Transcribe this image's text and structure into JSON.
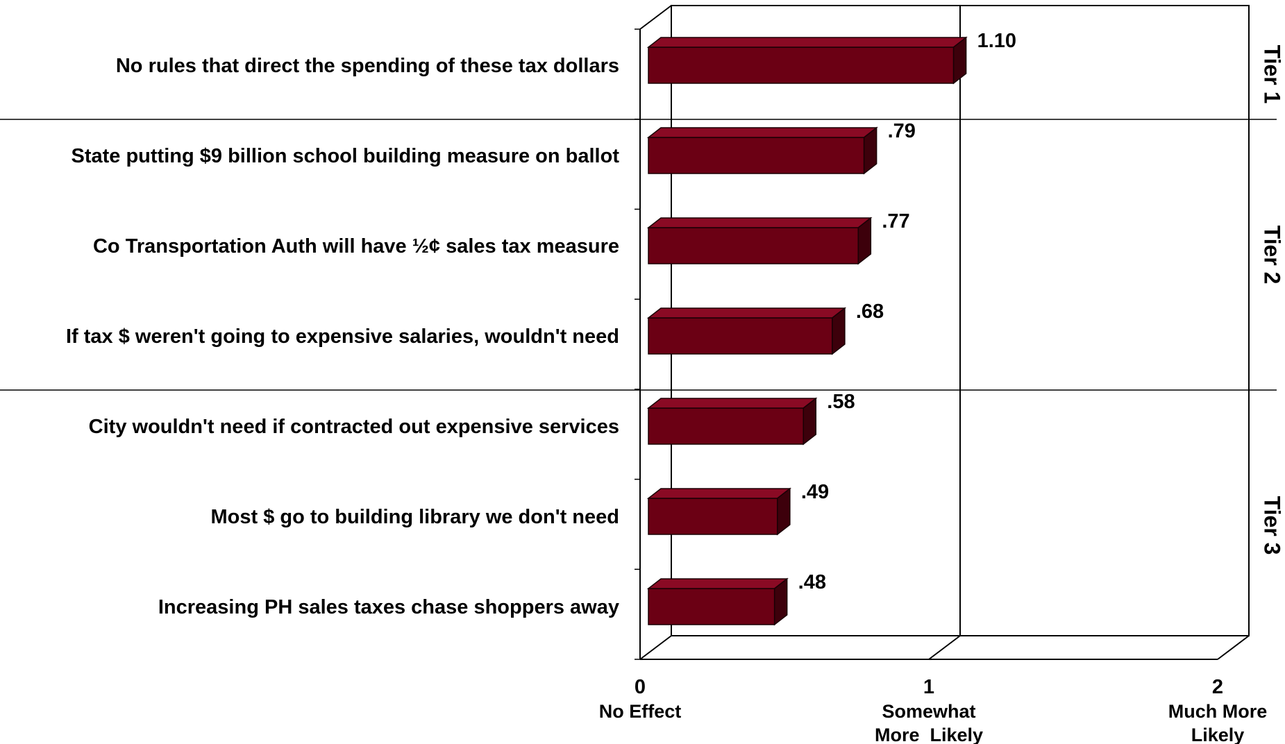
{
  "chart_data": {
    "type": "bar",
    "orientation": "horizontal",
    "categories": [
      "No rules that direct the spending of these tax dollars",
      "State putting $9 billion school building measure on ballot",
      "Co Transportation Auth will have ½¢ sales tax measure",
      "If tax $ weren't going to expensive salaries, wouldn't need",
      "City wouldn't need if contracted out expensive services",
      "Most $ go to building library we don't need",
      "Increasing PH sales taxes chase shoppers away"
    ],
    "values": [
      1.1,
      0.79,
      0.77,
      0.68,
      0.58,
      0.49,
      0.48
    ],
    "value_labels": [
      "1.10",
      ".79",
      ".77",
      ".68",
      ".58",
      ".49",
      ".48"
    ],
    "xlim": [
      0,
      2
    ],
    "x_ticks": [
      {
        "value": 0,
        "label": "0",
        "caption": [
          "No Effect"
        ]
      },
      {
        "value": 1,
        "label": "1",
        "caption": [
          "Somewhat",
          "More  Likely"
        ]
      },
      {
        "value": 2,
        "label": "2",
        "caption": [
          "Much More",
          "Likely"
        ]
      }
    ],
    "tiers": [
      {
        "label": "Tier 1",
        "start": 0,
        "end": 0
      },
      {
        "label": "Tier 2",
        "start": 1,
        "end": 3
      },
      {
        "label": "Tier 3",
        "start": 4,
        "end": 6
      }
    ],
    "bar_color": "#6b0014",
    "bar_top_color": "#8a0a24",
    "bar_side_color": "#3d000b",
    "grid": true
  }
}
